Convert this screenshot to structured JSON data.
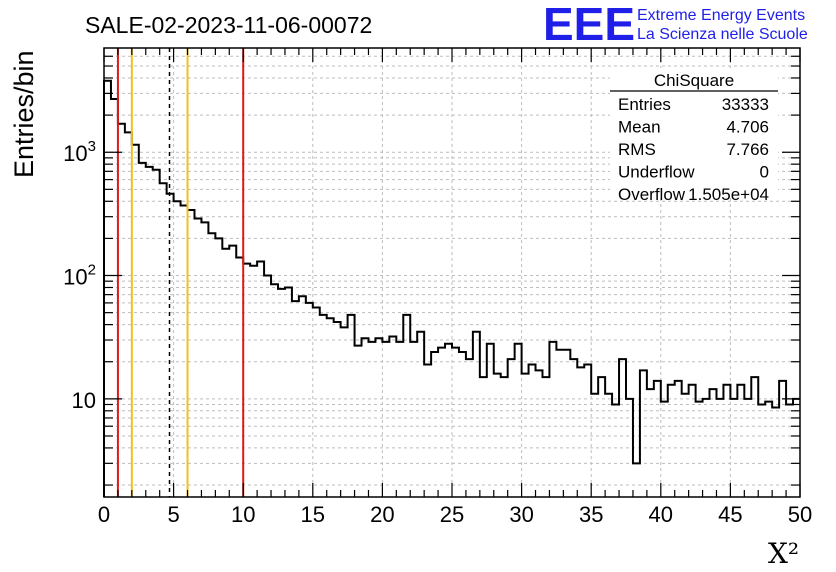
{
  "chart_data": {
    "type": "histogram",
    "title": "SALE-02-2023-11-06-00072",
    "xlabel": "X²",
    "ylabel": "Entries/bin",
    "xlim": [
      0,
      50
    ],
    "ylim": [
      1.6,
      7000
    ],
    "yscale": "log",
    "grid": true,
    "bin_width": 0.5,
    "x_ticks": [
      0,
      5,
      10,
      15,
      20,
      25,
      30,
      35,
      40,
      45,
      50
    ],
    "y_ticks": [
      {
        "value": 1000,
        "label": "10",
        "exp": "3"
      },
      {
        "value": 100,
        "label": "10",
        "exp": "2"
      },
      {
        "value": 10,
        "label": "10",
        "exp": ""
      }
    ],
    "values": [
      3800,
      2700,
      1700,
      1450,
      1150,
      820,
      760,
      720,
      560,
      460,
      400,
      370,
      340,
      290,
      270,
      220,
      200,
      165,
      175,
      140,
      125,
      120,
      130,
      100,
      85,
      78,
      80,
      62,
      68,
      60,
      55,
      48,
      45,
      42,
      38,
      48,
      27,
      31,
      29,
      31,
      29,
      32,
      29,
      48,
      29,
      35,
      19,
      24,
      26,
      28,
      26,
      24,
      21,
      35,
      15,
      28,
      16,
      15,
      21,
      28,
      16,
      19,
      17,
      15,
      29,
      25,
      25,
      21,
      18,
      19,
      11,
      15,
      11,
      9,
      21,
      10,
      3,
      17,
      12,
      14,
      9.5,
      13,
      14,
      11,
      13,
      9.5,
      10,
      12,
      10,
      13,
      10,
      13,
      10,
      15,
      9,
      9.5,
      8.5,
      14,
      9,
      10
    ],
    "cut_lines": [
      {
        "x": 1,
        "color": "#e01818",
        "style": "solid"
      },
      {
        "x": 2,
        "color": "#f0c020",
        "style": "solid"
      },
      {
        "x": 4.706,
        "color": "#000000",
        "style": "dashed"
      },
      {
        "x": 6,
        "color": "#f0c020",
        "style": "solid"
      },
      {
        "x": 10,
        "color": "#e01818",
        "style": "solid"
      }
    ]
  },
  "stats": {
    "name": "ChiSquare",
    "rows": [
      {
        "label": "Entries",
        "value": "33333"
      },
      {
        "label": "Mean",
        "value": "4.706"
      },
      {
        "label": "RMS",
        "value": "7.766"
      },
      {
        "label": "Underflow",
        "value": "0"
      },
      {
        "label": "Overflow",
        "value": "1.505e+04"
      }
    ]
  },
  "logo": {
    "mark": "EEE",
    "line1": "Extreme Energy Events",
    "line2": "La Scienza nelle Scuole"
  },
  "colors": {
    "logo": "#1f1fe8",
    "red_cut": "#e01818",
    "yellow_cut": "#f0c020",
    "grid": "#bdbdbd"
  }
}
